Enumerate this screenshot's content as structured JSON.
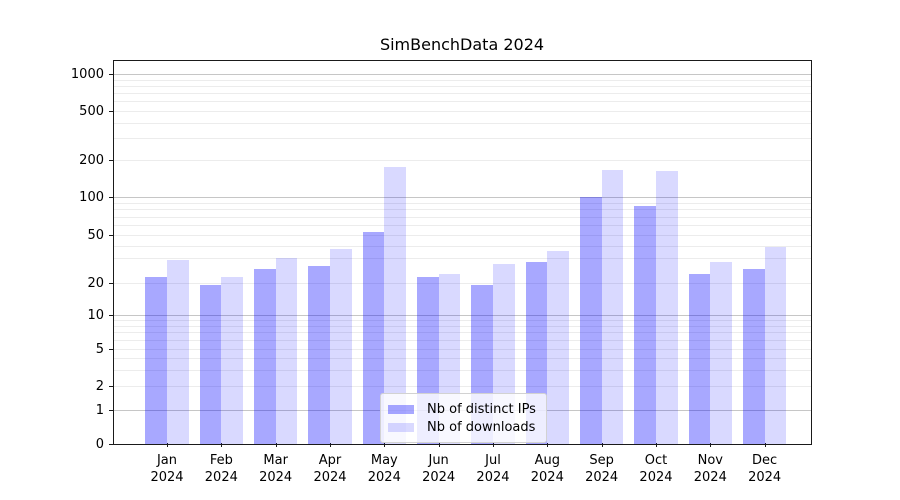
{
  "chart_data": {
    "type": "bar",
    "title": "SimBenchData 2024",
    "categories": [
      "Jan",
      "Feb",
      "Mar",
      "Apr",
      "May",
      "Jun",
      "Jul",
      "Aug",
      "Sep",
      "Oct",
      "Nov",
      "Dec"
    ],
    "year_label": "2024",
    "series": [
      {
        "name": "Nb of distinct IPs",
        "color": "#0000FF",
        "alpha": 0.34,
        "values": [
          22,
          19,
          25,
          26,
          53,
          22,
          19,
          28,
          100,
          85,
          23,
          25
        ]
      },
      {
        "name": "Nb of downloads",
        "color": "#0000FF",
        "alpha": 0.15,
        "values": [
          29,
          22,
          30,
          37,
          175,
          23,
          27,
          35,
          165,
          163,
          28,
          39
        ]
      }
    ],
    "yscale": "symlog",
    "yticks": [
      0,
      1,
      2,
      5,
      10,
      20,
      50,
      100,
      200,
      500,
      1000
    ],
    "ylim": [
      0,
      1400
    ],
    "xlabel": "",
    "ylabel": "",
    "grid": {
      "major_lines": [
        1,
        10,
        100,
        1000
      ],
      "minor_lines": [
        2,
        3,
        4,
        5,
        6,
        7,
        8,
        9,
        20,
        30,
        40,
        50,
        60,
        70,
        80,
        90,
        200,
        300,
        400,
        500,
        600,
        700,
        800,
        900
      ],
      "major_color": "#c6c6c6",
      "minor_color": "#ececec"
    },
    "legend": {
      "position": "lower center",
      "entries": [
        "Nb of distinct IPs",
        "Nb of downloads"
      ]
    }
  }
}
